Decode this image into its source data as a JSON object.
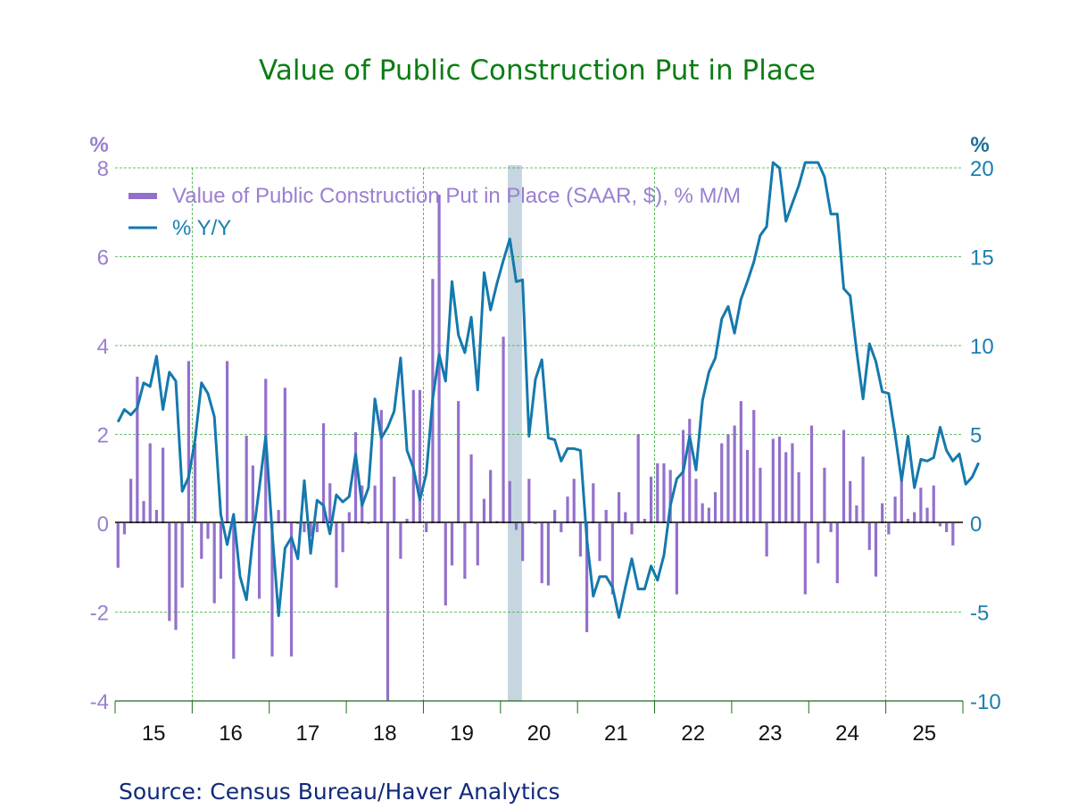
{
  "chart_data": {
    "type": "bar+line",
    "title": "Value of Public Construction Put in Place",
    "source": "Source:  Census Bureau/Haver Analytics",
    "start_month": "2015-01",
    "frequency": "monthly",
    "left_axis": {
      "unit": "%",
      "range": [
        -4,
        8
      ],
      "ticks": [
        "8",
        "6",
        "4",
        "2",
        "0",
        "-2",
        "-4"
      ],
      "tick_values": [
        8,
        6,
        4,
        2,
        0,
        -2,
        -4
      ]
    },
    "right_axis": {
      "unit": "%",
      "range": [
        -10,
        20
      ],
      "ticks": [
        "20",
        "15",
        "10",
        "5",
        "0",
        "-5",
        "-10"
      ],
      "tick_values": [
        20,
        15,
        10,
        5,
        0,
        -5,
        -10
      ]
    },
    "x_ticks": [
      "15",
      "16",
      "17",
      "18",
      "19",
      "20",
      "21",
      "22",
      "23",
      "24",
      "25"
    ],
    "grid": true,
    "recession_shading": {
      "start": "2020-02",
      "end": "2020-04",
      "color": "#c5d6e0"
    },
    "legend": {
      "position": "top-left",
      "entries": [
        {
          "label": "Value of Public Construction Put in Place (SAAR, $), % M/M",
          "type": "bar",
          "color": "#9370cc",
          "axis": "left"
        },
        {
          "label": "% Y/Y",
          "type": "line",
          "color": "#1479ad",
          "axis": "right"
        }
      ]
    },
    "series": [
      {
        "name": "Value of Public Construction Put in Place (SAAR, $), % M/M",
        "type": "bar",
        "axis": "left",
        "color": "#9370cc",
        "values": [
          -1.0,
          -0.25,
          1.0,
          3.3,
          0.5,
          1.8,
          0.3,
          1.7,
          -2.2,
          -2.4,
          -1.45,
          3.65,
          1.8,
          -0.8,
          -0.35,
          -1.8,
          -1.25,
          3.65,
          -3.05,
          0.02,
          1.97,
          1.3,
          -1.7,
          3.25,
          -3.0,
          0.3,
          3.05,
          -3.0,
          0.0,
          -0.2,
          -0.3,
          -0.2,
          2.25,
          0.9,
          -1.45,
          -0.65,
          0.25,
          2.05,
          0.85,
          0.0,
          0.85,
          2.55,
          -4.0,
          1.05,
          -0.8,
          0.1,
          3.0,
          3.0,
          -0.2,
          5.5,
          7.4,
          -1.85,
          -0.95,
          2.75,
          -1.25,
          1.55,
          -0.95,
          0.55,
          1.2,
          0.05,
          4.2,
          0.95,
          -0.15,
          -0.85,
          1.0,
          0.0,
          -1.35,
          -1.4,
          0.3,
          -0.2,
          0.6,
          1.0,
          -0.75,
          -2.45,
          0.9,
          -0.85,
          0.3,
          -1.6,
          0.7,
          0.25,
          -0.25,
          2.0,
          0.1,
          1.05,
          1.35,
          1.35,
          1.2,
          -1.6,
          2.1,
          2.35,
          1.0,
          0.45,
          0.35,
          0.7,
          1.8,
          2.0,
          2.2,
          2.75,
          1.65,
          2.55,
          1.25,
          -0.75,
          1.9,
          1.95,
          1.6,
          1.8,
          1.15,
          -1.6,
          2.2,
          -0.9,
          1.25,
          -0.2,
          -1.35,
          2.1,
          0.95,
          0.4,
          1.5,
          -0.6,
          -1.2,
          0.45,
          -0.25,
          0.6,
          1.15,
          0.1,
          0.25,
          0.8,
          0.35,
          0.85,
          -0.07,
          -0.2,
          -0.5
        ]
      },
      {
        "name": "% Y/Y",
        "type": "line",
        "axis": "right",
        "color": "#1479ad",
        "values": [
          5.7,
          6.4,
          6.1,
          6.5,
          7.9,
          7.7,
          9.4,
          6.4,
          8.5,
          8.0,
          1.8,
          2.6,
          4.7,
          7.9,
          7.3,
          6.0,
          0.5,
          -1.2,
          0.5,
          -3.0,
          -4.3,
          -0.8,
          2.0,
          4.9,
          -0.5,
          -5.2,
          -1.4,
          -0.8,
          -2.0,
          2.4,
          -1.7,
          1.3,
          1.0,
          -0.6,
          1.6,
          1.2,
          1.5,
          3.9,
          1.0,
          2.0,
          7.0,
          4.8,
          5.4,
          6.3,
          9.3,
          4.1,
          3.1,
          1.3,
          2.8,
          7.0,
          9.5,
          8.0,
          13.6,
          10.6,
          9.6,
          11.6,
          7.5,
          14.1,
          12.0,
          13.5,
          14.8,
          16.0,
          13.6,
          13.7,
          4.9,
          8.1,
          9.2,
          4.8,
          4.7,
          3.5,
          4.2,
          4.2,
          4.1,
          -0.9,
          -4.1,
          -3.0,
          -3.0,
          -3.6,
          -5.3,
          -3.6,
          -2.0,
          -3.7,
          -3.7,
          -2.4,
          -3.2,
          -1.8,
          1.0,
          2.5,
          2.9,
          4.9,
          3.0,
          6.9,
          8.5,
          9.3,
          11.5,
          12.2,
          10.7,
          12.6,
          13.6,
          14.7,
          16.2,
          16.7,
          22.5,
          20.0,
          17.0,
          18.0,
          19.0,
          20.5,
          22.0,
          21.0,
          19.5,
          17.4,
          17.4,
          13.2,
          12.8,
          9.7,
          7.0,
          10.1,
          9.1,
          7.4,
          7.3,
          5.0,
          2.4,
          4.9,
          2.0,
          3.6,
          3.5,
          3.7,
          5.4,
          4.1,
          3.5,
          3.9,
          2.2,
          2.6,
          3.4
        ]
      }
    ]
  }
}
